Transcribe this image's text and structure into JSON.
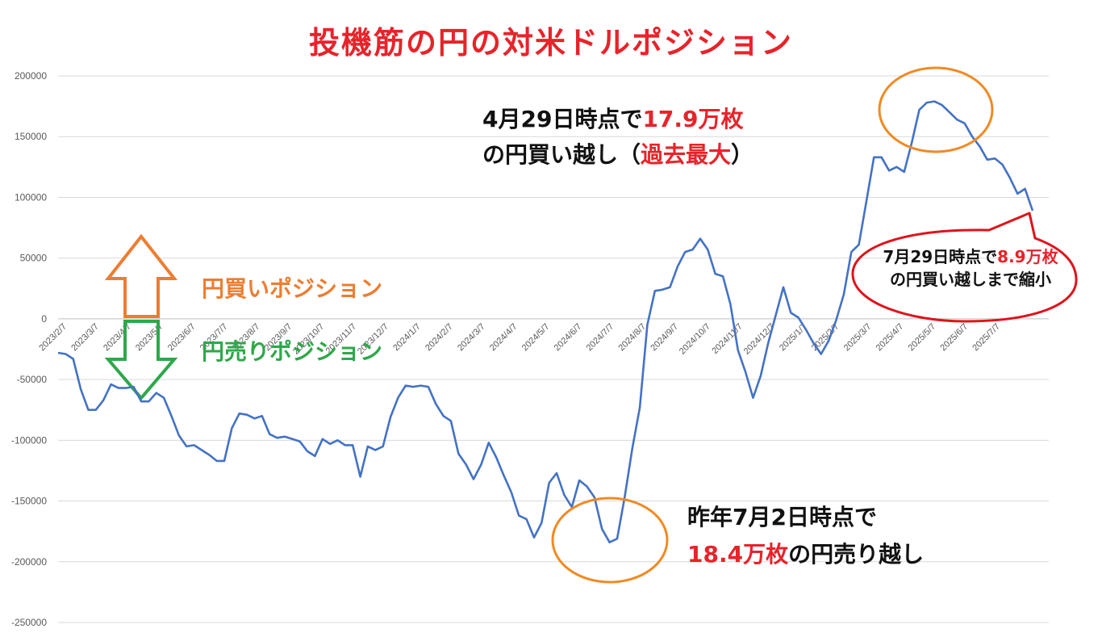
{
  "title": "投機筋の円の対米ドルポジション",
  "colors": {
    "title": "#e8232a",
    "line": "#4472c4",
    "buy": "#ed7d31",
    "sell": "#2ea84a",
    "highlight": "#e8232a",
    "ellipse_orange": "#f08a24",
    "ellipse_red": "#e0121b",
    "axis_text": "#595959",
    "grid": "#d9d9d9"
  },
  "legend": {
    "buy_label": "円買いポジション",
    "sell_label": "円売りポジション"
  },
  "annotations": {
    "peak": {
      "line1_a": "4月29日時点で",
      "line1_b": "17.9万枚",
      "line2_a": "の円買い越し（",
      "line2_b": "過去最大",
      "line2_c": "）"
    },
    "trough": {
      "line1": "昨年7月2日時点で",
      "line2_a": "18.4万枚",
      "line2_b": "の円売り越し"
    },
    "latest": {
      "line1_a": "7月29日時点で",
      "line1_b": "8.9万枚",
      "line2": "の円買い越しまで縮小"
    }
  },
  "chart_data": {
    "type": "line",
    "title": "投機筋の円の対米ドルポジション",
    "xlabel": "",
    "ylabel": "",
    "ylim": [
      -250000,
      200000
    ],
    "y_ticks": [
      200000,
      150000,
      100000,
      50000,
      0,
      -50000,
      -100000,
      -150000,
      -200000,
      -250000
    ],
    "x_tick_labels": [
      "2023/2/7",
      "2023/3/7",
      "2023/4/7",
      "2023/5/7",
      "2023/6/7",
      "2023/7/7",
      "2023/8/7",
      "2023/9/7",
      "2023/10/7",
      "2023/11/7",
      "2023/12/7",
      "2024/1/7",
      "2024/2/7",
      "2024/3/7",
      "2024/4/7",
      "2024/5/7",
      "2024/6/7",
      "2024/7/7",
      "2024/8/7",
      "2024/9/7",
      "2024/10/7",
      "2024/11/7",
      "2024/12/7",
      "2025/1/7",
      "2025/2/7",
      "2025/3/7",
      "2025/4/7",
      "2025/5/7",
      "2025/6/7",
      "2025/7/7"
    ],
    "grid": true,
    "series": [
      {
        "name": "",
        "values": [
          -28000,
          -29000,
          -33000,
          -58000,
          -75000,
          -75000,
          -67000,
          -54000,
          -57000,
          -57000,
          -56000,
          -68000,
          -68000,
          -61000,
          -65000,
          -80000,
          -96000,
          -105000,
          -104000,
          -108000,
          -112000,
          -117000,
          -117000,
          -90000,
          -78000,
          -79000,
          -82000,
          -80000,
          -95000,
          -98000,
          -97000,
          -99000,
          -101000,
          -109000,
          -113000,
          -99000,
          -103000,
          -100000,
          -104000,
          -104000,
          -130000,
          -105000,
          -108000,
          -105000,
          -81000,
          -65000,
          -55000,
          -56000,
          -55000,
          -56000,
          -70000,
          -80000,
          -84000,
          -111000,
          -120000,
          -132000,
          -120000,
          -102000,
          -114000,
          -129000,
          -143000,
          -162000,
          -165000,
          -180000,
          -168000,
          -135000,
          -127000,
          -145000,
          -155000,
          -133000,
          -138000,
          -147000,
          -173000,
          -184000,
          -181000,
          -147000,
          -107000,
          -73000,
          -5000,
          23000,
          24000,
          26000,
          43000,
          55000,
          57000,
          66000,
          57000,
          37000,
          35000,
          12000,
          -26000,
          -44000,
          -65000,
          -47000,
          -20000,
          3000,
          26000,
          5000,
          1000,
          -9000,
          -20000,
          -29000,
          -18000,
          -1000,
          20000,
          55000,
          61000,
          97000,
          133000,
          133000,
          122000,
          125000,
          121000,
          145000,
          172000,
          178000,
          179000,
          176000,
          170000,
          164000,
          161000,
          150000,
          142000,
          131000,
          132000,
          127000,
          116000,
          103000,
          107000,
          89000
        ]
      }
    ]
  }
}
